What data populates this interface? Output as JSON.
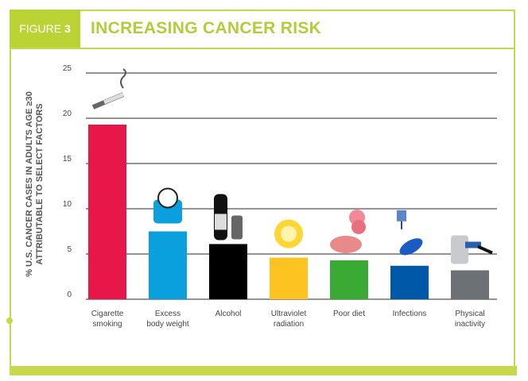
{
  "header": {
    "figure_label": "FIGURE",
    "figure_number": "3",
    "title": "INCREASING CANCER RISK"
  },
  "chart_data": {
    "type": "bar",
    "title": "INCREASING CANCER RISK",
    "ylabel_lines": [
      "% U.S. CANCER CASES IN ADULTS AGE ≥30",
      "ATTRIBUTABLE TO SELECT FACTORS"
    ],
    "xlabel": "",
    "ylim": [
      0,
      25
    ],
    "yticks": [
      0,
      5,
      10,
      15,
      20,
      25
    ],
    "grid": true,
    "categories": [
      [
        "Cigarette",
        "smoking"
      ],
      [
        "Excess",
        "body weight"
      ],
      [
        "Alcohol"
      ],
      [
        "Ultraviolet",
        "radiation"
      ],
      [
        "Poor diet"
      ],
      [
        "Infections"
      ],
      [
        "Physical",
        "inactivity"
      ]
    ],
    "values": [
      19.3,
      7.5,
      6.1,
      4.6,
      4.3,
      3.7,
      3.2
    ],
    "colors": [
      "#e8174a",
      "#0aa0de",
      "#000000",
      "#fdc321",
      "#3aaa35",
      "#0059a8",
      "#6d7176"
    ],
    "icons": [
      "cigarette-icon",
      "scale-icon",
      "wine-bottle-and-can-icon",
      "sun-icon",
      "burger-and-ice-cream-icon",
      "virus-and-bacteria-icon",
      "person-in-recliner-icon"
    ]
  }
}
